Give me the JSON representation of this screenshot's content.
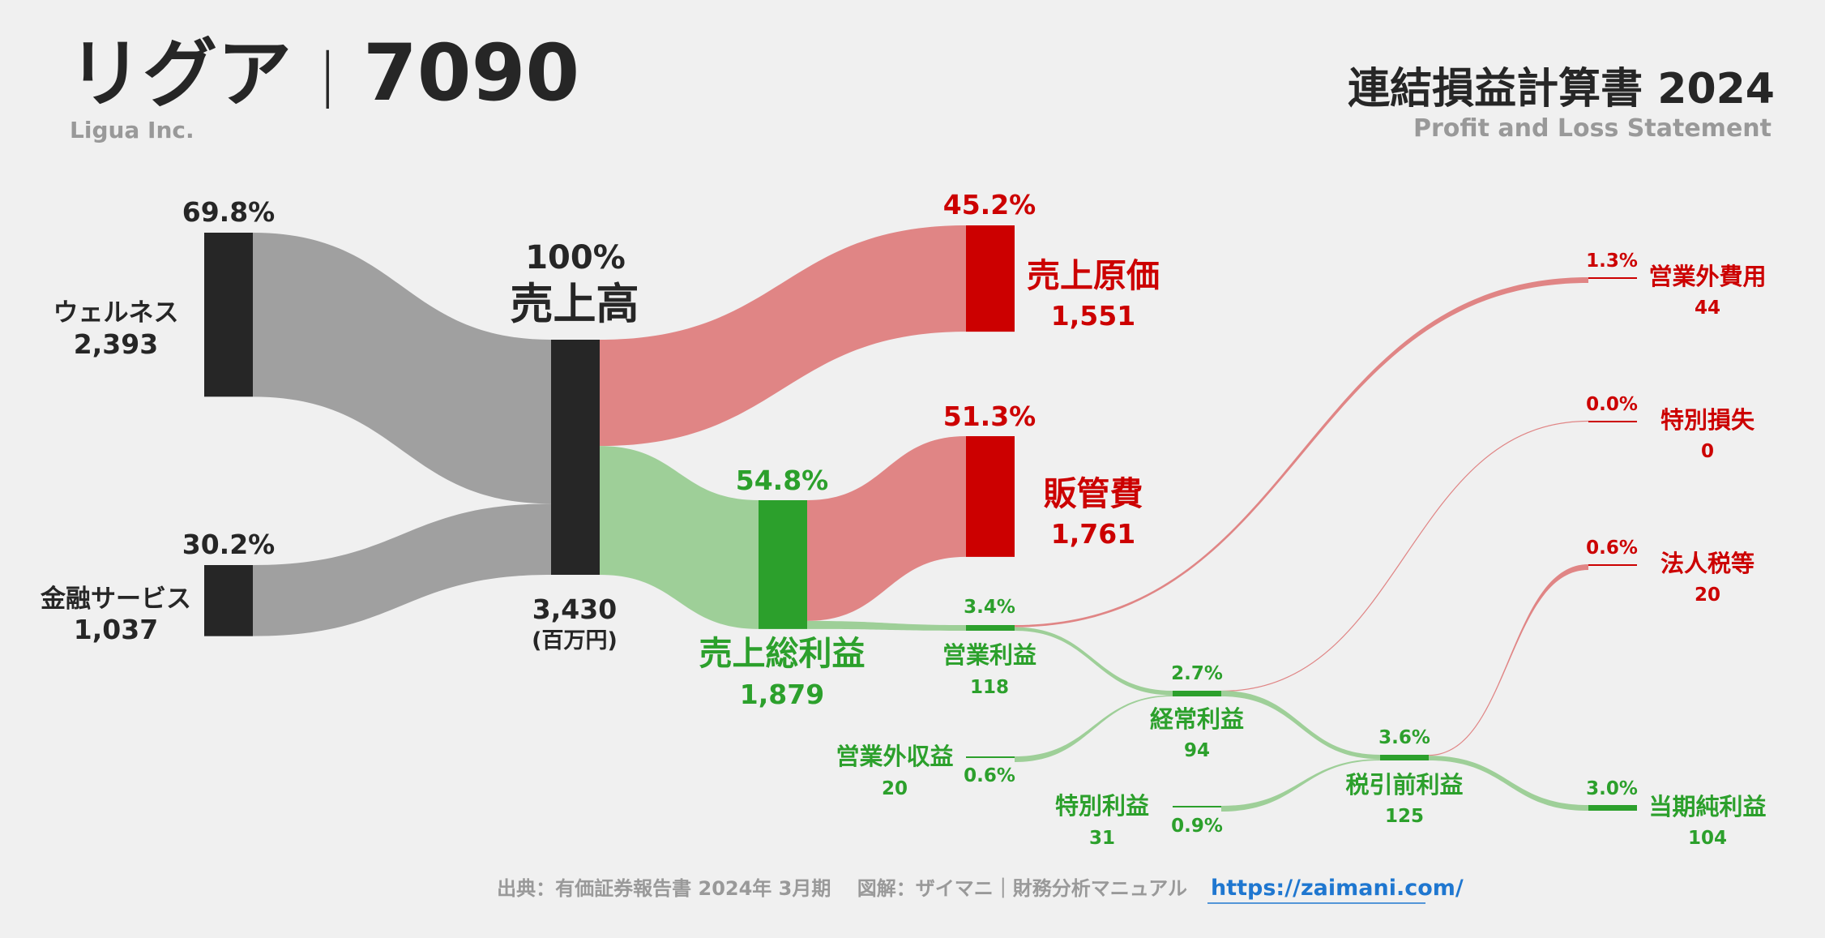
{
  "header": {
    "company": "リグア",
    "separator": "|",
    "code": "7090",
    "company_en": "Ligua Inc.",
    "title": "連結損益計算書 2024",
    "subtitle": "Profit and Loss Statement"
  },
  "footer": {
    "source": "出典：有価証券報告書 2024年 3月期　 図解：ザイマニ｜財務分析マニュアル",
    "url": "https://zaimani.com/"
  },
  "colors": {
    "black": "#262626",
    "gray_flow": "#a0a0a0",
    "red": "#cc0000",
    "red_flow": "#e08585",
    "green": "#2ca02c",
    "green_flow": "#9ecf98",
    "text_dark": "#262626",
    "text_gray": "#999999",
    "link": "#1f77d0"
  },
  "chart_data": {
    "type": "sankey",
    "unit": "(百万円)",
    "nodes": [
      {
        "id": "wellness",
        "label": "ウェルネス",
        "value": 2393,
        "value_text": "2,393",
        "pct": "69.8%",
        "color": "black"
      },
      {
        "id": "finance",
        "label": "金融サービス",
        "value": 1037,
        "value_text": "1,037",
        "pct": "30.2%",
        "color": "black"
      },
      {
        "id": "revenue",
        "label": "売上高",
        "value": 3430,
        "value_text": "3,430",
        "pct": "100%",
        "color": "black"
      },
      {
        "id": "cogs",
        "label": "売上原価",
        "value": 1551,
        "value_text": "1,551",
        "pct": "45.2%",
        "color": "red"
      },
      {
        "id": "gross",
        "label": "売上総利益",
        "value": 1879,
        "value_text": "1,879",
        "pct": "54.8%",
        "color": "green"
      },
      {
        "id": "sga",
        "label": "販管費",
        "value": 1761,
        "value_text": "1,761",
        "pct": "51.3%",
        "color": "red"
      },
      {
        "id": "op",
        "label": "営業利益",
        "value": 118,
        "value_text": "118",
        "pct": "3.4%",
        "color": "green"
      },
      {
        "id": "nonop_inc",
        "label": "営業外収益",
        "value": 20,
        "value_text": "20",
        "pct": "0.6%",
        "color": "green"
      },
      {
        "id": "nonop_exp",
        "label": "営業外費用",
        "value": 44,
        "value_text": "44",
        "pct": "1.3%",
        "color": "red"
      },
      {
        "id": "ordinary",
        "label": "経常利益",
        "value": 94,
        "value_text": "94",
        "pct": "2.7%",
        "color": "green"
      },
      {
        "id": "special_gain",
        "label": "特別利益",
        "value": 31,
        "value_text": "31",
        "pct": "0.9%",
        "color": "green"
      },
      {
        "id": "special_loss",
        "label": "特別損失",
        "value": 0,
        "value_text": "0",
        "pct": "0.0%",
        "color": "red"
      },
      {
        "id": "pretax",
        "label": "税引前利益",
        "value": 125,
        "value_text": "125",
        "pct": "3.6%",
        "color": "green"
      },
      {
        "id": "tax",
        "label": "法人税等",
        "value": 20,
        "value_text": "20",
        "pct": "0.6%",
        "color": "red"
      },
      {
        "id": "net",
        "label": "当期純利益",
        "value": 104,
        "value_text": "104",
        "pct": "3.0%",
        "color": "green"
      }
    ],
    "links": [
      {
        "source": "wellness",
        "target": "revenue",
        "value": 2393,
        "color": "gray_flow"
      },
      {
        "source": "finance",
        "target": "revenue",
        "value": 1037,
        "color": "gray_flow"
      },
      {
        "source": "revenue",
        "target": "cogs",
        "value": 1551,
        "color": "red_flow"
      },
      {
        "source": "revenue",
        "target": "gross",
        "value": 1879,
        "color": "green_flow"
      },
      {
        "source": "gross",
        "target": "sga",
        "value": 1761,
        "color": "red_flow"
      },
      {
        "source": "gross",
        "target": "op",
        "value": 118,
        "color": "green_flow"
      },
      {
        "source": "op",
        "target": "nonop_exp",
        "value": 44,
        "color": "red_flow"
      },
      {
        "source": "op",
        "target": "ordinary",
        "value": 74,
        "color": "green_flow"
      },
      {
        "source": "nonop_inc",
        "target": "ordinary",
        "value": 20,
        "color": "green_flow"
      },
      {
        "source": "ordinary",
        "target": "special_loss",
        "value": 0,
        "color": "red_flow"
      },
      {
        "source": "ordinary",
        "target": "pretax",
        "value": 94,
        "color": "green_flow"
      },
      {
        "source": "special_gain",
        "target": "pretax",
        "value": 31,
        "color": "green_flow"
      },
      {
        "source": "pretax",
        "target": "tax",
        "value": 20,
        "color": "red_flow"
      },
      {
        "source": "pretax",
        "target": "net",
        "value": 104,
        "color": "green_flow"
      }
    ]
  }
}
